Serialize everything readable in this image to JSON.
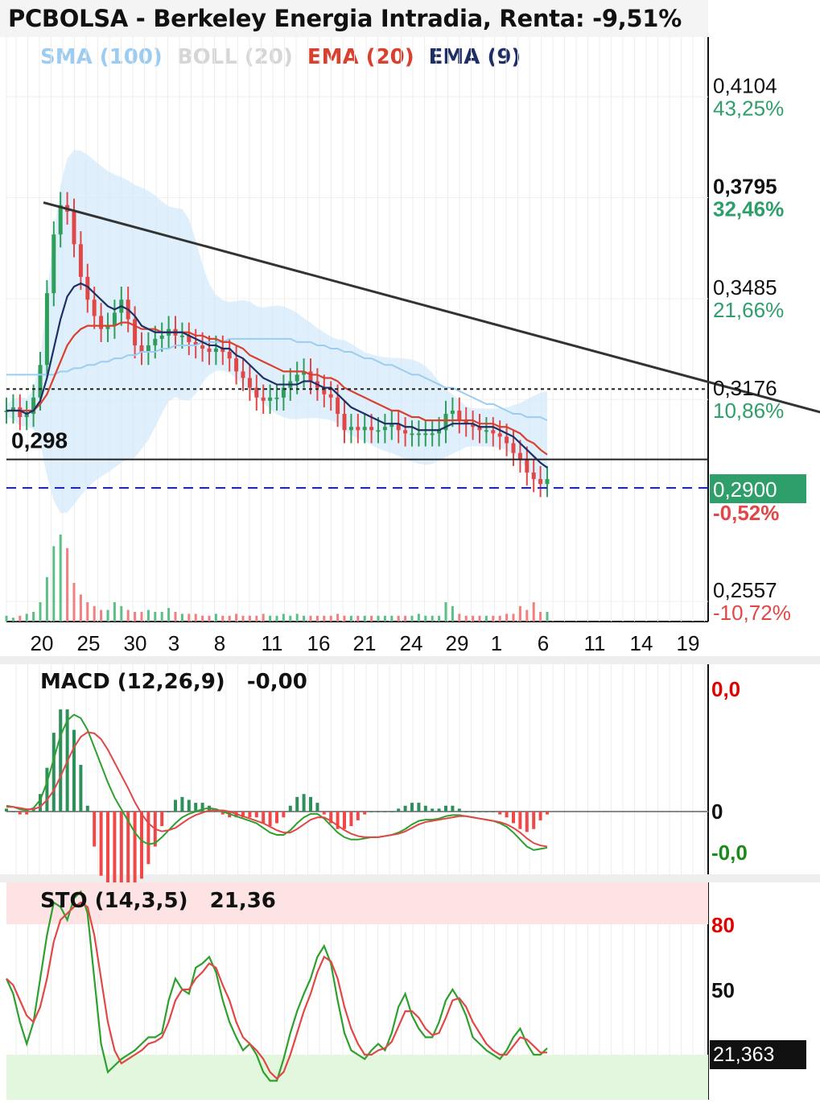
{
  "title": "PCBOLSA - Berkeley Energia Intradia, Renta: -9,51%",
  "legend": [
    {
      "label": "SMA (100)",
      "color": "#9ccdf0"
    },
    {
      "label": "BOLL (20)",
      "color": "#d6d6d6"
    },
    {
      "label": "EMA (20)",
      "color": "#d9402e"
    },
    {
      "label": "EMA (9)",
      "color": "#1e2f66"
    }
  ],
  "chart_data": [
    {
      "type": "line",
      "name": "price",
      "x_tick_labels": [
        "20",
        "25",
        "30",
        "3",
        "8",
        "11",
        "16",
        "21",
        "24",
        "29",
        "1",
        "6",
        "11",
        "14",
        "19"
      ],
      "y_axis_labels": [
        {
          "value": "0,4104",
          "pct": "43,25%"
        },
        {
          "value": "0,3795",
          "pct": "32,46%"
        },
        {
          "value": "0,3485",
          "pct": "21,66%"
        },
        {
          "value": "0,3176",
          "pct": "10,86%"
        },
        {
          "value": "0,2557",
          "pct": "-10,72%"
        }
      ],
      "current_price": {
        "value": "0,2900",
        "pct": "-0,52%"
      },
      "support_level": {
        "label": "0,298",
        "value": 0.298
      },
      "reference_level": 0.3176,
      "ylim": [
        0.2557,
        0.4104
      ],
      "trendline": [
        {
          "x": 0,
          "y": 0.3748
        },
        {
          "x": 135,
          "y": 0.2983
        }
      ],
      "close": [
        0.311,
        0.312,
        0.309,
        0.31,
        0.315,
        0.325,
        0.347,
        0.365,
        0.374,
        0.372,
        0.362,
        0.352,
        0.345,
        0.34,
        0.336,
        0.337,
        0.341,
        0.345,
        0.339,
        0.331,
        0.329,
        0.331,
        0.333,
        0.334,
        0.336,
        0.334,
        0.334,
        0.332,
        0.331,
        0.33,
        0.329,
        0.33,
        0.329,
        0.327,
        0.323,
        0.321,
        0.318,
        0.315,
        0.314,
        0.315,
        0.315,
        0.318,
        0.32,
        0.322,
        0.323,
        0.32,
        0.318,
        0.316,
        0.315,
        0.31,
        0.305,
        0.306,
        0.305,
        0.306,
        0.305,
        0.305,
        0.306,
        0.307,
        0.305,
        0.304,
        0.304,
        0.304,
        0.304,
        0.304,
        0.305,
        0.31,
        0.311,
        0.308,
        0.307,
        0.306,
        0.305,
        0.305,
        0.304,
        0.303,
        0.301,
        0.298,
        0.296,
        0.292,
        0.29,
        0.2885,
        0.29
      ],
      "ema9": [
        0.311,
        0.311,
        0.311,
        0.31,
        0.311,
        0.314,
        0.321,
        0.33,
        0.339,
        0.346,
        0.349,
        0.35,
        0.349,
        0.347,
        0.345,
        0.343,
        0.342,
        0.343,
        0.342,
        0.34,
        0.337,
        0.336,
        0.335,
        0.335,
        0.335,
        0.335,
        0.335,
        0.334,
        0.333,
        0.332,
        0.331,
        0.331,
        0.33,
        0.33,
        0.328,
        0.327,
        0.325,
        0.323,
        0.321,
        0.32,
        0.319,
        0.319,
        0.319,
        0.319,
        0.32,
        0.32,
        0.319,
        0.318,
        0.318,
        0.316,
        0.314,
        0.312,
        0.311,
        0.31,
        0.309,
        0.308,
        0.307,
        0.307,
        0.307,
        0.306,
        0.306,
        0.305,
        0.305,
        0.305,
        0.305,
        0.306,
        0.307,
        0.307,
        0.307,
        0.307,
        0.306,
        0.306,
        0.306,
        0.305,
        0.304,
        0.303,
        0.301,
        0.299,
        0.297,
        0.295,
        0.2935
      ],
      "ema20": [
        0.311,
        0.311,
        0.311,
        0.311,
        0.311,
        0.313,
        0.316,
        0.321,
        0.326,
        0.331,
        0.334,
        0.336,
        0.337,
        0.337,
        0.337,
        0.337,
        0.337,
        0.338,
        0.338,
        0.337,
        0.336,
        0.336,
        0.336,
        0.335,
        0.335,
        0.335,
        0.335,
        0.335,
        0.334,
        0.334,
        0.333,
        0.333,
        0.332,
        0.332,
        0.331,
        0.33,
        0.328,
        0.327,
        0.326,
        0.325,
        0.324,
        0.323,
        0.323,
        0.323,
        0.323,
        0.322,
        0.322,
        0.321,
        0.321,
        0.32,
        0.318,
        0.317,
        0.316,
        0.315,
        0.314,
        0.313,
        0.312,
        0.311,
        0.311,
        0.31,
        0.309,
        0.309,
        0.308,
        0.308,
        0.308,
        0.308,
        0.308,
        0.308,
        0.308,
        0.308,
        0.307,
        0.307,
        0.307,
        0.306,
        0.306,
        0.305,
        0.304,
        0.302,
        0.301,
        0.299,
        0.2975
      ],
      "sma100": [
        0.322,
        0.322,
        0.322,
        0.322,
        0.322,
        0.322,
        0.322,
        0.322,
        0.323,
        0.323,
        0.324,
        0.324,
        0.325,
        0.325,
        0.326,
        0.326,
        0.327,
        0.327,
        0.328,
        0.328,
        0.329,
        0.329,
        0.329,
        0.33,
        0.33,
        0.331,
        0.331,
        0.331,
        0.331,
        0.332,
        0.332,
        0.332,
        0.332,
        0.333,
        0.333,
        0.333,
        0.333,
        0.333,
        0.333,
        0.333,
        0.333,
        0.333,
        0.333,
        0.332,
        0.332,
        0.332,
        0.331,
        0.331,
        0.33,
        0.33,
        0.329,
        0.329,
        0.328,
        0.327,
        0.327,
        0.326,
        0.325,
        0.325,
        0.324,
        0.323,
        0.322,
        0.322,
        0.321,
        0.32,
        0.319,
        0.318,
        0.318,
        0.317,
        0.316,
        0.315,
        0.314,
        0.313,
        0.313,
        0.312,
        0.311,
        0.31,
        0.31,
        0.309,
        0.309,
        0.309,
        0.308
      ],
      "volume": [
        0.3,
        0.2,
        0.3,
        0.4,
        0.5,
        1.0,
        2.3,
        3.9,
        4.5,
        3.8,
        2.0,
        1.4,
        1.0,
        0.8,
        0.6,
        0.6,
        1.0,
        0.8,
        0.6,
        0.5,
        0.5,
        0.6,
        0.5,
        0.5,
        0.7,
        0.5,
        0.4,
        0.4,
        0.4,
        0.3,
        0.3,
        0.4,
        0.3,
        0.3,
        0.4,
        0.3,
        0.3,
        0.3,
        0.4,
        0.3,
        0.3,
        0.4,
        0.3,
        0.4,
        0.3,
        0.3,
        0.3,
        0.3,
        0.3,
        0.4,
        0.3,
        0.3,
        0.3,
        0.3,
        0.3,
        0.3,
        0.3,
        0.3,
        0.3,
        0.3,
        0.3,
        0.4,
        0.3,
        0.3,
        0.3,
        1.0,
        0.8,
        0.4,
        0.3,
        0.3,
        0.3,
        0.3,
        0.3,
        0.3,
        0.4,
        0.4,
        0.8,
        0.6,
        1.0,
        0.5,
        0.5
      ]
    },
    {
      "type": "line",
      "name": "MACD",
      "title": "MACD (12,26,9)",
      "current_value": "-0,00",
      "y_axis_labels": [
        {
          "label": "0,0",
          "color": "#e00000"
        },
        {
          "label": "0",
          "color": "#111111"
        },
        {
          "label": "-0,0",
          "color": "#1a8a1a"
        }
      ],
      "ylim": [
        -0.012,
        0.012
      ],
      "macd": [
        0.0005,
        0.0004,
        0.0002,
        0.0001,
        0.0003,
        0.001,
        0.0025,
        0.0045,
        0.0065,
        0.0078,
        0.0083,
        0.008,
        0.007,
        0.0055,
        0.004,
        0.0025,
        0.0012,
        0.0002,
        -0.0008,
        -0.0018,
        -0.0025,
        -0.0028,
        -0.0027,
        -0.0022,
        -0.0016,
        -0.001,
        -0.0005,
        -0.0002,
        0.0,
        0.0002,
        0.0003,
        0.0002,
        0.0,
        -0.0002,
        -0.0004,
        -0.0006,
        -0.0008,
        -0.001,
        -0.0014,
        -0.0018,
        -0.002,
        -0.002,
        -0.0016,
        -0.001,
        -0.0005,
        -0.0002,
        -0.0002,
        -0.0006,
        -0.0012,
        -0.0018,
        -0.0022,
        -0.0024,
        -0.0024,
        -0.0023,
        -0.0022,
        -0.0022,
        -0.0021,
        -0.002,
        -0.0018,
        -0.0015,
        -0.0011,
        -0.0008,
        -0.0007,
        -0.0007,
        -0.0006,
        -0.0004,
        -0.0003,
        -0.0003,
        -0.0004,
        -0.0005,
        -0.0006,
        -0.0007,
        -0.0008,
        -0.001,
        -0.0013,
        -0.0018,
        -0.0024,
        -0.003,
        -0.0033,
        -0.0032,
        -0.0031
      ],
      "signal": [
        0.0004,
        0.0004,
        0.0003,
        0.0002,
        0.0002,
        0.0004,
        0.001,
        0.0018,
        0.003,
        0.0043,
        0.0055,
        0.0064,
        0.0068,
        0.0067,
        0.0062,
        0.0053,
        0.0042,
        0.0031,
        0.002,
        0.0008,
        -0.0002,
        -0.001,
        -0.0015,
        -0.0017,
        -0.0016,
        -0.0014,
        -0.001,
        -0.0006,
        -0.0003,
        -0.0001,
        0.0001,
        0.0001,
        0.0001,
        0.0,
        -0.0002,
        -0.0004,
        -0.0006,
        -0.0008,
        -0.001,
        -0.0013,
        -0.0016,
        -0.0018,
        -0.0018,
        -0.0015,
        -0.0011,
        -0.0007,
        -0.0005,
        -0.0005,
        -0.0008,
        -0.0012,
        -0.0016,
        -0.0019,
        -0.0021,
        -0.0022,
        -0.0022,
        -0.0022,
        -0.0021,
        -0.002,
        -0.0019,
        -0.0017,
        -0.0014,
        -0.0011,
        -0.0009,
        -0.0008,
        -0.0007,
        -0.0006,
        -0.0005,
        -0.0004,
        -0.0004,
        -0.0005,
        -0.0006,
        -0.0007,
        -0.0008,
        -0.0009,
        -0.0011,
        -0.0014,
        -0.0018,
        -0.0023,
        -0.0027,
        -0.0029,
        -0.003
      ]
    },
    {
      "type": "line",
      "name": "STO",
      "title": "STO (14,3,5)",
      "current_value": "21,36",
      "y_axis_labels": [
        {
          "label": "80",
          "color": "#e00000"
        },
        {
          "label": "50",
          "color": "#111111"
        }
      ],
      "current_badge": "21,363",
      "ylim": [
        0,
        100
      ],
      "zones": {
        "overbought": 80,
        "oversold": 20
      },
      "k": [
        55,
        48,
        35,
        25,
        35,
        55,
        75,
        90,
        88,
        82,
        92,
        95,
        85,
        55,
        25,
        12,
        15,
        18,
        20,
        22,
        25,
        28,
        28,
        30,
        45,
        55,
        50,
        48,
        60,
        62,
        65,
        58,
        45,
        35,
        28,
        22,
        25,
        20,
        12,
        8,
        8,
        18,
        30,
        40,
        48,
        55,
        65,
        70,
        62,
        45,
        30,
        22,
        20,
        18,
        22,
        25,
        22,
        30,
        42,
        48,
        38,
        32,
        28,
        28,
        35,
        45,
        50,
        45,
        38,
        28,
        25,
        22,
        20,
        18,
        22,
        28,
        32,
        25,
        20,
        20,
        23
      ],
      "d": [
        55,
        52,
        45,
        38,
        35,
        42,
        55,
        72,
        82,
        85,
        88,
        90,
        88,
        75,
        55,
        35,
        22,
        16,
        18,
        20,
        22,
        25,
        26,
        28,
        35,
        45,
        50,
        50,
        55,
        58,
        62,
        60,
        52,
        45,
        35,
        28,
        25,
        22,
        18,
        12,
        9,
        12,
        20,
        30,
        40,
        48,
        58,
        65,
        63,
        55,
        42,
        32,
        25,
        20,
        20,
        22,
        23,
        26,
        33,
        40,
        40,
        37,
        32,
        29,
        30,
        37,
        45,
        46,
        42,
        35,
        30,
        25,
        22,
        20,
        20,
        24,
        28,
        27,
        24,
        21,
        21
      ]
    }
  ]
}
